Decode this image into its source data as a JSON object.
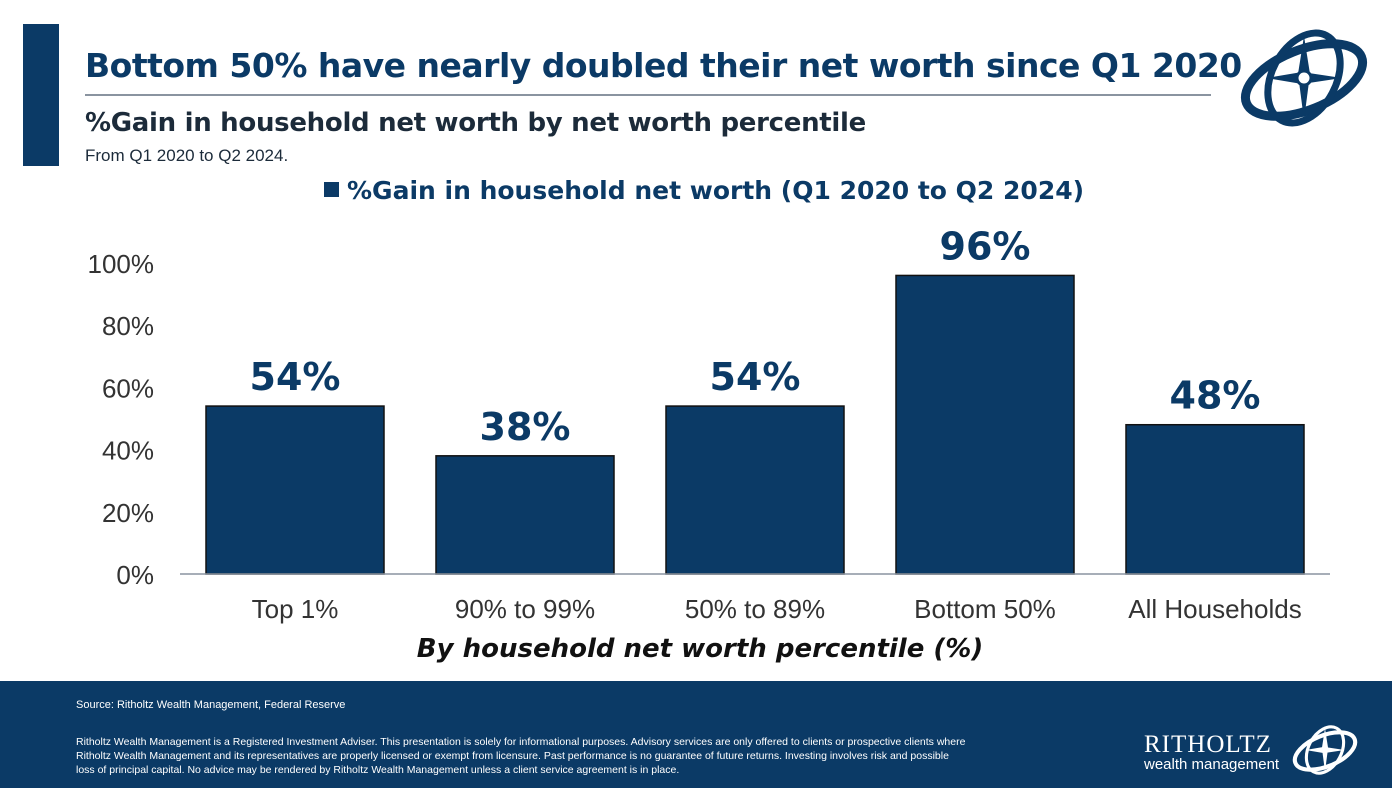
{
  "header": {
    "title": "Bottom 50% have nearly doubled their net worth since Q1 2020",
    "subtitle": "%Gain in household net worth by net worth percentile",
    "date_range": "From Q1 2020 to Q2 2024."
  },
  "chart_data": {
    "type": "bar",
    "categories": [
      "Top 1%",
      "90% to 99%",
      "50% to 89%",
      "Bottom 50%",
      "All Households"
    ],
    "series": [
      {
        "name": "%Gain in household net worth (Q1 2020 to Q2 2024)",
        "values": [
          54,
          38,
          54,
          96,
          48
        ]
      }
    ],
    "data_labels": [
      "54%",
      "38%",
      "54%",
      "96%",
      "48%"
    ],
    "xlabel": "By household net worth percentile (%)",
    "ylabel": "",
    "ylim": [
      0,
      100
    ],
    "yticks": [
      0,
      20,
      40,
      60,
      80,
      100
    ],
    "ytick_labels": [
      "0%",
      "20%",
      "40%",
      "60%",
      "80%",
      "100%"
    ],
    "grid": false,
    "legend_position": "top-center",
    "bar_color": "#0b3a66"
  },
  "footer": {
    "source": "Source: Ritholtz Wealth Management, Federal Reserve",
    "disclaimer": "Ritholtz Wealth Management is a Registered Investment Adviser. This presentation is solely for informational purposes. Advisory services are only offered to clients or prospective clients where Ritholtz Wealth Management and its representatives are properly licensed or exempt from licensure. Past performance is no guarantee of future returns. Investing involves risk and possible loss of principal capital. No advice may be rendered by Ritholtz Wealth Management unless a client service agreement is in place.",
    "brand_name": "RITHOLTZ",
    "brand_tagline": "wealth management"
  },
  "icons": {
    "logo": "compass-globe-logo"
  },
  "colors": {
    "primary": "#0b3a66",
    "text_dark": "#1c2b3a",
    "axis": "#8a94a0",
    "background": "#ffffff"
  }
}
